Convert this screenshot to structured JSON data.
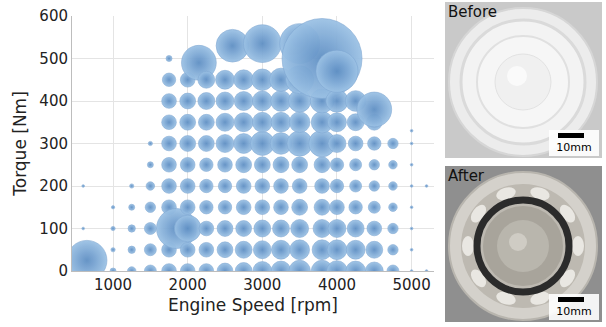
{
  "chart_data": {
    "type": "bubble",
    "x_label": "Engine Speed [rpm]",
    "y_label": "Torque [Nm]",
    "xlim": [
      450,
      5300
    ],
    "xticks": [
      1000,
      2000,
      3000,
      4000,
      5000
    ],
    "ylim": [
      0,
      600
    ],
    "yticks": [
      0,
      100,
      200,
      300,
      400,
      500,
      600
    ],
    "grid": true,
    "color": "#9cc2e5",
    "marker": "circle",
    "x": [
      650,
      600,
      600,
      1000,
      1000,
      1000,
      1000,
      1250,
      1250,
      1250,
      1250,
      1250,
      1500,
      1500,
      1500,
      1500,
      1500,
      1500,
      1500,
      1750,
      1750,
      1750,
      1750,
      1750,
      1750,
      1750,
      1750,
      1750,
      1750,
      1850,
      2000,
      2000,
      2000,
      2000,
      2000,
      2000,
      2000,
      2000,
      2000,
      2000,
      2150,
      2250,
      2250,
      2250,
      2250,
      2250,
      2250,
      2250,
      2250,
      2250,
      2250,
      2500,
      2500,
      2500,
      2500,
      2500,
      2500,
      2500,
      2500,
      2500,
      2500,
      2600,
      2750,
      2750,
      2750,
      2750,
      2750,
      2750,
      2750,
      2750,
      2750,
      2750,
      3000,
      3000,
      3000,
      3000,
      3000,
      3000,
      3000,
      3000,
      3000,
      3000,
      3000,
      3250,
      3250,
      3250,
      3250,
      3250,
      3250,
      3250,
      3250,
      3250,
      3250,
      3500,
      3500,
      3500,
      3500,
      3500,
      3500,
      3500,
      3500,
      3500,
      3500,
      3500,
      3800,
      3800,
      3800,
      3800,
      3800,
      3800,
      3800,
      3800,
      3800,
      3800,
      4000,
      4000,
      4000,
      4000,
      4000,
      4000,
      4000,
      4000,
      4000,
      4000,
      4250,
      4250,
      4250,
      4250,
      4250,
      4250,
      4250,
      4250,
      4250,
      4500,
      4500,
      4500,
      4500,
      4500,
      4500,
      4500,
      4500,
      4500,
      4750,
      4750,
      4750,
      4750,
      4750,
      4750,
      4750,
      5000,
      5000,
      5000,
      5000,
      5000,
      5000,
      5000,
      5000,
      5200,
      5200
    ],
    "values": [
      25,
      100,
      200,
      0,
      50,
      100,
      150,
      0,
      50,
      100,
      150,
      200,
      0,
      50,
      100,
      150,
      200,
      250,
      300,
      0,
      50,
      150,
      200,
      250,
      300,
      350,
      400,
      450,
      500,
      100,
      0,
      50,
      100,
      150,
      200,
      250,
      300,
      350,
      400,
      450,
      490,
      0,
      50,
      100,
      150,
      200,
      250,
      300,
      350,
      400,
      450,
      0,
      50,
      100,
      150,
      200,
      250,
      300,
      350,
      400,
      450,
      530,
      0,
      50,
      100,
      150,
      200,
      250,
      300,
      350,
      400,
      450,
      0,
      50,
      100,
      150,
      200,
      250,
      300,
      350,
      400,
      450,
      535,
      0,
      50,
      100,
      150,
      200,
      250,
      300,
      350,
      400,
      450,
      0,
      50,
      100,
      150,
      200,
      250,
      300,
      350,
      400,
      450,
      535,
      0,
      50,
      100,
      150,
      200,
      250,
      300,
      350,
      400,
      500,
      0,
      50,
      100,
      150,
      200,
      250,
      300,
      350,
      400,
      470,
      0,
      50,
      100,
      150,
      200,
      250,
      300,
      350,
      400,
      0,
      50,
      100,
      150,
      200,
      250,
      300,
      350,
      380,
      0,
      50,
      100,
      150,
      200,
      250,
      300,
      0,
      50,
      100,
      150,
      200,
      250,
      300,
      330,
      0,
      200
    ],
    "sizes": [
      4.5,
      0.02,
      0.02,
      0.1,
      0.05,
      0.05,
      0.03,
      0.2,
      0.15,
      0.15,
      0.1,
      0.05,
      0.4,
      0.4,
      0.4,
      0.3,
      0.2,
      0.1,
      0.05,
      0.6,
      0.6,
      0.6,
      0.6,
      0.6,
      0.6,
      0.6,
      0.6,
      0.5,
      0.1,
      4.5,
      0.6,
      0.6,
      2.0,
      0.6,
      0.6,
      0.6,
      0.7,
      0.7,
      0.7,
      0.6,
      3.4,
      0.6,
      0.6,
      0.6,
      0.5,
      0.5,
      0.5,
      0.7,
      0.7,
      0.8,
      0.8,
      0.7,
      0.7,
      0.7,
      0.5,
      0.5,
      0.6,
      0.9,
      0.9,
      0.9,
      1.0,
      3.0,
      0.8,
      0.8,
      0.7,
      0.6,
      0.6,
      0.7,
      1.1,
      1.0,
      1.0,
      1.1,
      1.0,
      0.9,
      0.8,
      0.6,
      0.6,
      0.7,
      1.6,
      1.1,
      1.1,
      1.3,
      4.0,
      1.1,
      1.0,
      0.8,
      0.6,
      0.6,
      0.7,
      1.3,
      1.1,
      1.2,
      1.5,
      1.3,
      1.1,
      0.9,
      0.7,
      0.6,
      0.7,
      1.8,
      1.2,
      1.4,
      2.2,
      4.5,
      1.3,
      1.1,
      0.9,
      0.7,
      0.6,
      0.7,
      2.0,
      1.3,
      1.6,
      18,
      1.2,
      1.1,
      0.9,
      0.6,
      0.5,
      0.5,
      0.9,
      1.0,
      1.4,
      5.0,
      1.1,
      1.0,
      0.8,
      0.5,
      0.4,
      0.4,
      0.6,
      0.8,
      1.2,
      0.9,
      0.8,
      0.6,
      0.4,
      0.3,
      0.3,
      0.5,
      0.7,
      3.4,
      0.4,
      0.3,
      0.3,
      0.2,
      0.2,
      0.2,
      0.3,
      0.02,
      0.02,
      0.02,
      0.02,
      0.02,
      0.02,
      0.02,
      0.02,
      0.02,
      0.02
    ]
  },
  "images": [
    {
      "label": "Before",
      "scale_bar": "10mm"
    },
    {
      "label": "After",
      "scale_bar": "10mm"
    }
  ]
}
